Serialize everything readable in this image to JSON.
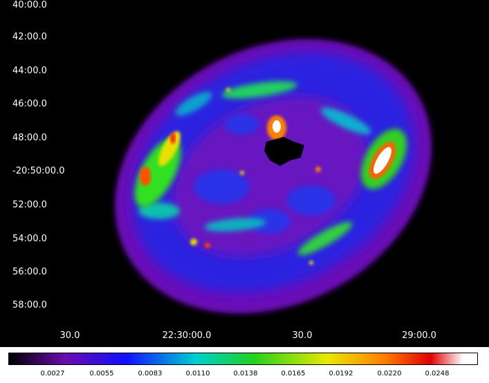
{
  "image": {
    "dec_ticks": [
      "40:00.0",
      "42:00.0",
      "44:00.0",
      "46:00.0",
      "48:00.0",
      "-20:50:00.0",
      "52:00.0",
      "54:00.0",
      "56:00.0",
      "58:00.0"
    ],
    "ra_ticks": [
      "30.0",
      "22:30:00.0",
      "30.0",
      "29:00.0"
    ]
  },
  "colorbar": {
    "labels": [
      "0.0027",
      "0.0055",
      "0.0083",
      "0.0110",
      "0.0138",
      "0.0165",
      "0.0192",
      "0.0220",
      "0.0248"
    ],
    "colors": {
      "black": "#000000",
      "purple": "#6a0dad",
      "blue": "#1010ff",
      "cyan": "#00d0d0",
      "green": "#20d020",
      "yellow": "#e8e800",
      "orange": "#ff8000",
      "red": "#e00000",
      "white": "#ffffff"
    }
  }
}
